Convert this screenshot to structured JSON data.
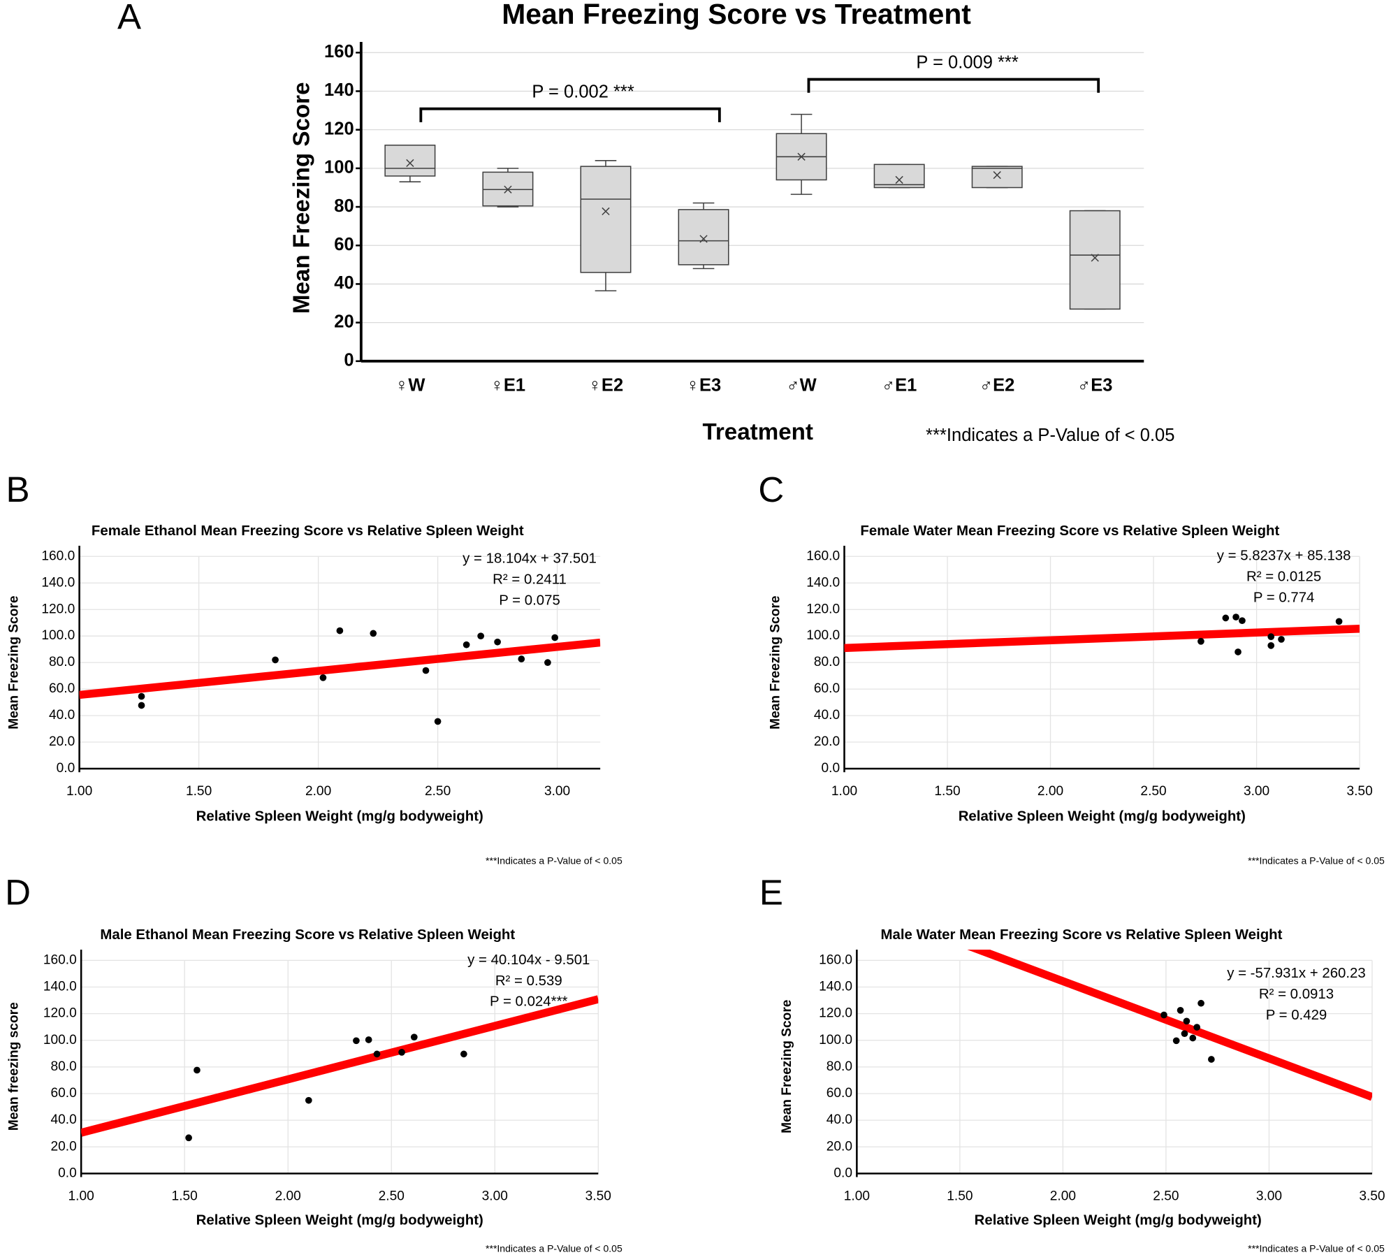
{
  "chart_data": [
    {
      "type": "box",
      "panel": "A",
      "title": "Mean Freezing Score vs Treatment",
      "x_label": "Treatment",
      "y_label": "Mean Freezing Score",
      "categories": [
        "♀W",
        "♀E1",
        "♀E2",
        "♀E3",
        "♂W",
        "♂E1",
        "♂E2",
        "♂E3"
      ],
      "boxes": [
        {
          "min": 93,
          "q1": 96,
          "median": 100,
          "q3": 112,
          "max": 112,
          "mean": 102.7
        },
        {
          "min": 80,
          "q1": 80.5,
          "median": 89,
          "q3": 98,
          "max": 100,
          "mean": 89
        },
        {
          "min": 36.5,
          "q1": 46,
          "median": 84,
          "q3": 101,
          "max": 104,
          "mean": 77.7
        },
        {
          "min": 48,
          "q1": 50,
          "median": 62.4,
          "q3": 78.6,
          "max": 82,
          "mean": 63.4
        },
        {
          "min": 86.5,
          "q1": 94,
          "median": 106,
          "q3": 118,
          "max": 128,
          "mean": 106
        },
        {
          "min": 90,
          "q1": 90,
          "median": 91.5,
          "q3": 102,
          "max": 102,
          "mean": 94
        },
        {
          "min": 90,
          "q1": 90,
          "median": 100,
          "q3": 101,
          "max": 101,
          "mean": 96.5
        },
        {
          "min": 27,
          "q1": 27,
          "median": 55,
          "q3": 78,
          "max": 78,
          "mean": 53.6
        }
      ],
      "color": "#d9d9d9",
      "ylim": [
        0,
        160
      ],
      "yticks": [
        0,
        20,
        40,
        60,
        80,
        100,
        120,
        140,
        160
      ],
      "grid": true,
      "annotations": [
        {
          "text": "P = 0.002 ***"
        },
        {
          "text": "P = 0.009 ***"
        }
      ],
      "note": "***Indicates a P-Value of < 0.05"
    },
    {
      "type": "scatter",
      "panel": "B",
      "title": "Female Ethanol Mean Freezing Score vs Relative Spleen Weight",
      "x_label": "Relative Spleen Weight (mg/g bodyweight)",
      "y_label": "Mean Freezing Score",
      "x": [
        1.26,
        1.26,
        1.82,
        2.02,
        2.09,
        2.23,
        2.45,
        2.5,
        2.62,
        2.68,
        2.75,
        2.85,
        2.96,
        2.99
      ],
      "values": [
        54.5,
        47.7,
        82,
        68.6,
        104,
        102,
        74,
        35.6,
        93.4,
        100,
        95.5,
        82.7,
        80,
        98.8
      ],
      "color": "#000000",
      "trendline": {
        "equation": "y = 18.104x + 37.501",
        "slope": 18.104,
        "intercept": 37.501,
        "r2": "R² = 0.2411",
        "p": "P = 0.075",
        "color": "#ff0000"
      },
      "xlim": [
        1,
        3.18
      ],
      "xticks": [
        {
          "value": 1,
          "label": "1.00"
        },
        {
          "value": 1.5,
          "label": "1.50"
        },
        {
          "value": 2,
          "label": "2.00"
        },
        {
          "value": 2.5,
          "label": "2.50"
        },
        {
          "value": 3,
          "label": "3.00"
        }
      ],
      "ylim": [
        0,
        160
      ],
      "yticks": [
        {
          "value": 0,
          "label": "0.0"
        },
        {
          "value": 20,
          "label": "20.0"
        },
        {
          "value": 40,
          "label": "40.0"
        },
        {
          "value": 60,
          "label": "60.0"
        },
        {
          "value": 80,
          "label": "80.0"
        },
        {
          "value": 100,
          "label": "100.0"
        },
        {
          "value": 120,
          "label": "120.0"
        },
        {
          "value": 140,
          "label": "140.0"
        },
        {
          "value": 160,
          "label": "160.0"
        }
      ],
      "grid": true,
      "note": "***Indicates a P-Value of < 0.05"
    },
    {
      "type": "scatter",
      "panel": "C",
      "title": "Female Water Mean Freezing Score vs Relative Spleen Weight",
      "x_label": "Relative Spleen Weight (mg/g bodyweight)",
      "y_label": "Mean Freezing Score",
      "x": [
        2.73,
        2.85,
        2.9,
        2.93,
        2.91,
        3.07,
        3.07,
        3.12,
        3.4
      ],
      "values": [
        96,
        113.6,
        114.3,
        111.6,
        88,
        99.5,
        92.8,
        97.5,
        111
      ],
      "color": "#000000",
      "trendline": {
        "equation": "y = 5.8237x + 85.138",
        "slope": 5.8237,
        "intercept": 85.138,
        "r2": "R² = 0.0125",
        "p": "P = 0.774",
        "color": "#ff0000"
      },
      "xlim": [
        1,
        3.5
      ],
      "xticks": [
        {
          "value": 1,
          "label": "1.00"
        },
        {
          "value": 1.5,
          "label": "1.50"
        },
        {
          "value": 2,
          "label": "2.00"
        },
        {
          "value": 2.5,
          "label": "2.50"
        },
        {
          "value": 3,
          "label": "3.00"
        },
        {
          "value": 3.5,
          "label": "3.50"
        }
      ],
      "ylim": [
        0,
        160
      ],
      "yticks": [
        {
          "value": 0,
          "label": "0.0"
        },
        {
          "value": 20,
          "label": "20.0"
        },
        {
          "value": 40,
          "label": "40.0"
        },
        {
          "value": 60,
          "label": "60.0"
        },
        {
          "value": 80,
          "label": "80.0"
        },
        {
          "value": 100,
          "label": "100.0"
        },
        {
          "value": 120,
          "label": "120.0"
        },
        {
          "value": 140,
          "label": "140.0"
        },
        {
          "value": 160,
          "label": "160.0"
        }
      ],
      "grid": true,
      "note": "***Indicates a P-Value of < 0.05"
    },
    {
      "type": "scatter",
      "panel": "D",
      "title": "Male Ethanol Mean Freezing Score vs Relative Spleen Weight",
      "x_label": "Relative Spleen Weight (mg/g bodyweight)",
      "y_label": "Mean freezing score",
      "x": [
        1.52,
        1.56,
        2.1,
        2.33,
        2.39,
        2.43,
        2.55,
        2.61,
        2.85
      ],
      "values": [
        26.8,
        77.6,
        54.9,
        99.7,
        100.4,
        89.7,
        91,
        102.4,
        89.7
      ],
      "color": "#000000",
      "trendline": {
        "equation": "y = 40.104x - 9.501",
        "slope": 40.104,
        "intercept": -9.501,
        "r2": "R² = 0.539",
        "p": "P = 0.024***",
        "color": "#ff0000"
      },
      "xlim": [
        1,
        3.5
      ],
      "xticks": [
        {
          "value": 1,
          "label": "1.00"
        },
        {
          "value": 1.5,
          "label": "1.50"
        },
        {
          "value": 2,
          "label": "2.00"
        },
        {
          "value": 2.5,
          "label": "2.50"
        },
        {
          "value": 3,
          "label": "3.00"
        },
        {
          "value": 3.5,
          "label": "3.50"
        }
      ],
      "ylim": [
        0,
        160
      ],
      "yticks": [
        {
          "value": 0,
          "label": "0.0"
        },
        {
          "value": 20,
          "label": "20.0"
        },
        {
          "value": 40,
          "label": "40.0"
        },
        {
          "value": 60,
          "label": "60.0"
        },
        {
          "value": 80,
          "label": "80.0"
        },
        {
          "value": 100,
          "label": "100.0"
        },
        {
          "value": 120,
          "label": "120.0"
        },
        {
          "value": 140,
          "label": "140.0"
        },
        {
          "value": 160,
          "label": "160.0"
        }
      ],
      "grid": true,
      "note": "***Indicates a P-Value of < 0.05"
    },
    {
      "type": "scatter",
      "panel": "E",
      "title": "Male Water Mean Freezing Score vs Relative Spleen Weight",
      "x_label": "Relative Spleen Weight (mg/g bodyweight)",
      "y_label": "Mean Freezing Score",
      "x": [
        2.49,
        2.57,
        2.55,
        2.6,
        2.59,
        2.63,
        2.65,
        2.67,
        2.72
      ],
      "values": [
        119,
        122.5,
        99.7,
        114.4,
        105,
        101.7,
        109.8,
        127.8,
        85.7
      ],
      "color": "#000000",
      "trendline": {
        "equation": "y = -57.931x + 260.23",
        "slope": -57.931,
        "intercept": 260.23,
        "r2": "R² = 0.0913",
        "p": "P = 0.429",
        "color": "#ff0000"
      },
      "xlim": [
        1,
        3.5
      ],
      "xticks": [
        {
          "value": 1,
          "label": "1.00"
        },
        {
          "value": 1.5,
          "label": "1.50"
        },
        {
          "value": 2,
          "label": "2.00"
        },
        {
          "value": 2.5,
          "label": "2.50"
        },
        {
          "value": 3,
          "label": "3.00"
        },
        {
          "value": 3.5,
          "label": "3.50"
        }
      ],
      "ylim": [
        0,
        160
      ],
      "yticks": [
        {
          "value": 0,
          "label": "0.0"
        },
        {
          "value": 20,
          "label": "20.0"
        },
        {
          "value": 40,
          "label": "40.0"
        },
        {
          "value": 60,
          "label": "60.0"
        },
        {
          "value": 80,
          "label": "80.0"
        },
        {
          "value": 100,
          "label": "100.0"
        },
        {
          "value": 120,
          "label": "120.0"
        },
        {
          "value": 140,
          "label": "140.0"
        },
        {
          "value": 160,
          "label": "160.0"
        }
      ],
      "grid": true,
      "note": "***Indicates a P-Value of < 0.05"
    }
  ]
}
